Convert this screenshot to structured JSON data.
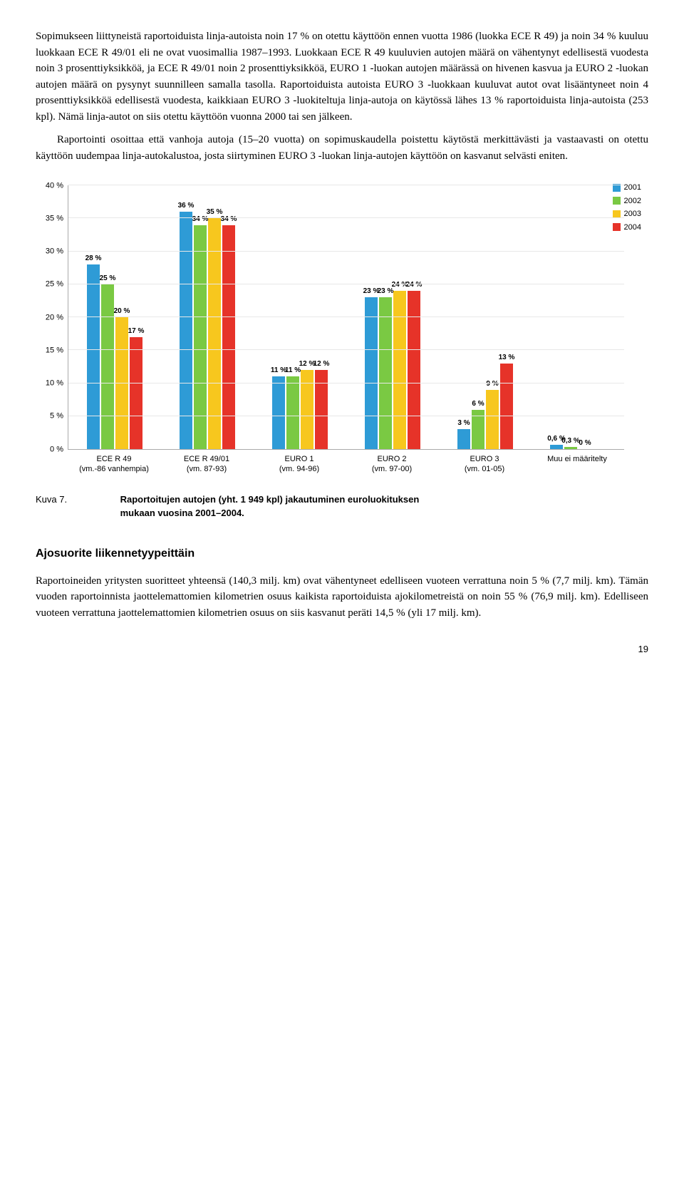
{
  "paragraphs": {
    "p1": "Sopimukseen liittyneistä raportoiduista linja-autoista noin 17 % on otettu käyttöön ennen vuotta 1986 (luokka ECE R 49) ja noin 34 % kuuluu luokkaan ECE R 49/01 eli ne ovat vuosimallia 1987–1993. Luokkaan ECE R 49 kuuluvien autojen määrä on vähentynyt edellisestä vuodesta noin 3 prosenttiyksikköä, ja ECE R 49/01 noin 2 prosenttiyksikköä, EURO 1 -luokan autojen määrässä on hivenen kasvua ja EURO 2 -luokan autojen määrä on pysynyt suunnilleen samalla tasolla. Raportoiduista autoista EURO 3 -luokkaan kuuluvat autot ovat lisääntyneet noin 4 prosenttiyksikköä edellisestä vuodesta, kaikkiaan EURO 3 -luokiteltuja linja-autoja on käytössä lähes 13 % raportoiduista linja-autoista (253 kpl). Nämä linja-autot on siis otettu käyttöön vuonna 2000 tai sen jälkeen.",
    "p2": "Raportointi osoittaa että vanhoja autoja (15–20 vuotta) on sopimuskaudella poistettu käytöstä merkittävästi ja vastaavasti on otettu käyttöön uudempaa linja-autokalustoa, josta siirtyminen EURO 3 -luokan linja-autojen käyttöön on kasvanut selvästi eniten.",
    "p3": "Raportoineiden yritysten suoritteet yhteensä (140,3 milj. km) ovat vähentyneet edelliseen vuoteen verrattuna noin 5 % (7,7 milj. km). Tämän vuoden raportoinnista jaottelemattomien kilometrien osuus kaikista raportoiduista ajokilometreistä on noin 55 % (76,9 milj. km). Edelliseen vuoteen verrattuna jaottelemattomien kilometrien osuus on siis kasvanut peräti 14,5 % (yli 17 milj. km)."
  },
  "chart": {
    "ymax": 40,
    "ystep": 5,
    "legend": [
      {
        "label": "2001",
        "color": "#2e9bd6"
      },
      {
        "label": "2002",
        "color": "#7ac943"
      },
      {
        "label": "2003",
        "color": "#f7c71e"
      },
      {
        "label": "2004",
        "color": "#e63329"
      }
    ],
    "categories": [
      {
        "label": "ECE R 49",
        "sub": "(vm.-86 vanhempia)",
        "bars": [
          {
            "v": 28,
            "t": "28 %",
            "c": "#2e9bd6"
          },
          {
            "v": 25,
            "t": "25 %",
            "c": "#7ac943"
          },
          {
            "v": 20,
            "t": "20 %",
            "c": "#f7c71e"
          },
          {
            "v": 17,
            "t": "17 %",
            "c": "#e63329"
          }
        ]
      },
      {
        "label": "ECE R 49/01",
        "sub": "(vm. 87-93)",
        "bars": [
          {
            "v": 36,
            "t": "36 %",
            "c": "#2e9bd6"
          },
          {
            "v": 34,
            "t": "34 %",
            "c": "#7ac943"
          },
          {
            "v": 35,
            "t": "35 %",
            "c": "#f7c71e"
          },
          {
            "v": 34,
            "t": "34 %",
            "c": "#e63329"
          }
        ]
      },
      {
        "label": "EURO 1",
        "sub": "(vm. 94-96)",
        "bars": [
          {
            "v": 11,
            "t": "11 %",
            "c": "#2e9bd6"
          },
          {
            "v": 11,
            "t": "11 %",
            "c": "#7ac943"
          },
          {
            "v": 12,
            "t": "12 %",
            "c": "#f7c71e"
          },
          {
            "v": 12,
            "t": "12 %",
            "c": "#e63329"
          }
        ]
      },
      {
        "label": "EURO 2",
        "sub": "(vm. 97-00)",
        "bars": [
          {
            "v": 23,
            "t": "23 %",
            "c": "#2e9bd6"
          },
          {
            "v": 23,
            "t": "23 %",
            "c": "#7ac943"
          },
          {
            "v": 24,
            "t": "24 %",
            "c": "#f7c71e"
          },
          {
            "v": 24,
            "t": "24 %",
            "c": "#e63329"
          }
        ]
      },
      {
        "label": "EURO 3",
        "sub": "(vm. 01-05)",
        "bars": [
          {
            "v": 3,
            "t": "3 %",
            "c": "#2e9bd6"
          },
          {
            "v": 6,
            "t": "6 %",
            "c": "#7ac943"
          },
          {
            "v": 9,
            "t": "9 %",
            "c": "#f7c71e"
          },
          {
            "v": 13,
            "t": "13 %",
            "c": "#e63329"
          }
        ]
      },
      {
        "label": "Muu ei määritelty",
        "sub": "",
        "bars": [
          {
            "v": 0.6,
            "t": "0,6 %",
            "c": "#2e9bd6"
          },
          {
            "v": 0.3,
            "t": "0,3 %",
            "c": "#7ac943"
          },
          {
            "v": 0,
            "t": "0 %",
            "c": "#f7c71e"
          },
          {
            "v": 0,
            "t": "",
            "c": "#e63329"
          }
        ]
      }
    ]
  },
  "caption": {
    "label": "Kuva 7.",
    "text1": "Raportoitujen autojen (yht. 1 949 kpl) jakautuminen euroluokituksen",
    "text2": "mukaan vuosina 2001–2004."
  },
  "section": "Ajosuorite liikennetyypeittäin",
  "pagenum": "19"
}
